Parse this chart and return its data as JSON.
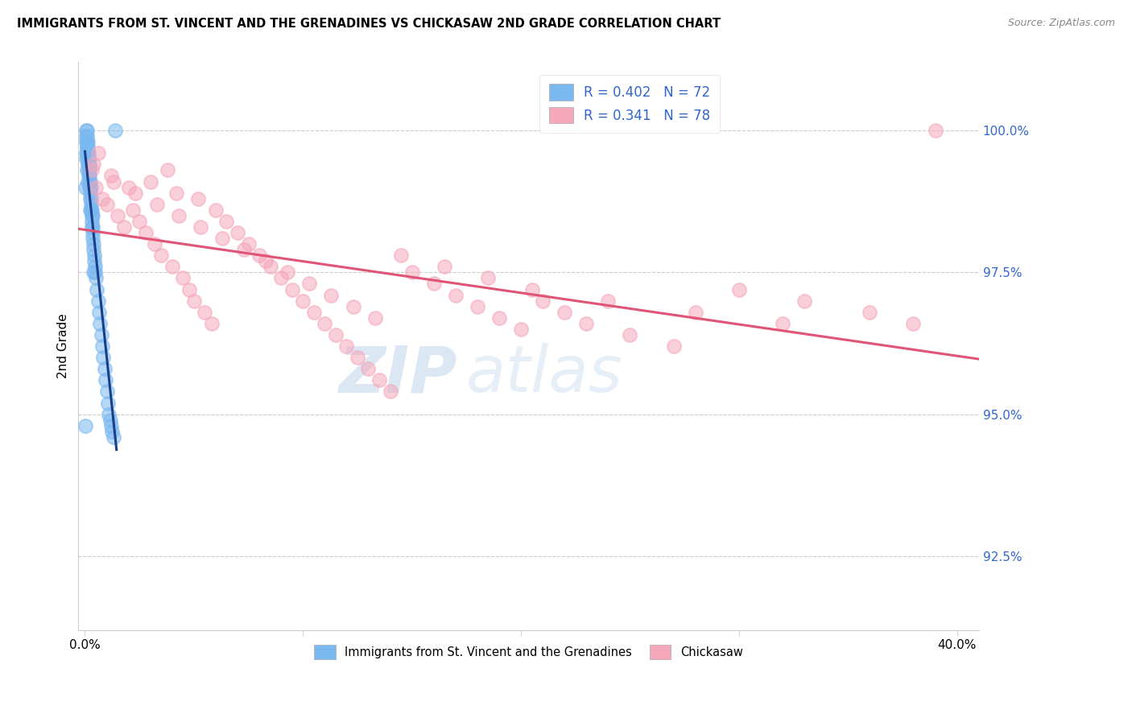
{
  "title": "IMMIGRANTS FROM ST. VINCENT AND THE GRENADINES VS CHICKASAW 2ND GRADE CORRELATION CHART",
  "source": "Source: ZipAtlas.com",
  "ylabel": "2nd Grade",
  "yticks": [
    92.5,
    95.0,
    97.5,
    100.0
  ],
  "ytick_labels": [
    "92.5%",
    "95.0%",
    "97.5%",
    "100.0%"
  ],
  "ymin": 91.2,
  "ymax": 101.2,
  "xmin": -0.3,
  "xmax": 41.0,
  "blue_R": 0.402,
  "blue_N": 72,
  "pink_R": 0.341,
  "pink_N": 78,
  "blue_color": "#7ab8f0",
  "pink_color": "#f5a8bc",
  "blue_line_color": "#1a3f8a",
  "pink_line_color": "#e05575",
  "legend_label_blue": "Immigrants from St. Vincent and the Grenadines",
  "legend_label_pink": "Chickasaw",
  "watermark_zip": "ZIP",
  "watermark_atlas": "atlas",
  "blue_scatter_x": [
    0.02,
    0.04,
    0.05,
    0.06,
    0.07,
    0.08,
    0.08,
    0.09,
    0.1,
    0.1,
    0.11,
    0.12,
    0.12,
    0.13,
    0.13,
    0.14,
    0.15,
    0.15,
    0.16,
    0.17,
    0.18,
    0.18,
    0.19,
    0.2,
    0.2,
    0.21,
    0.22,
    0.23,
    0.24,
    0.25,
    0.26,
    0.27,
    0.28,
    0.29,
    0.3,
    0.31,
    0.32,
    0.33,
    0.34,
    0.35,
    0.36,
    0.37,
    0.38,
    0.4,
    0.42,
    0.44,
    0.46,
    0.48,
    0.5,
    0.55,
    0.6,
    0.65,
    0.7,
    0.75,
    0.8,
    0.85,
    0.9,
    0.95,
    1.0,
    1.05,
    1.1,
    1.15,
    1.2,
    1.25,
    1.3,
    0.03,
    0.09,
    0.14,
    0.25,
    0.4,
    0.05,
    1.4
  ],
  "blue_scatter_y": [
    94.8,
    99.5,
    99.8,
    99.9,
    100.0,
    100.0,
    99.7,
    99.8,
    99.9,
    99.6,
    99.7,
    99.5,
    99.8,
    99.6,
    99.4,
    99.7,
    99.5,
    99.3,
    99.6,
    99.4,
    99.2,
    99.5,
    99.3,
    99.1,
    99.4,
    99.2,
    99.0,
    98.9,
    99.1,
    98.8,
    99.0,
    98.7,
    98.6,
    98.8,
    98.5,
    98.6,
    98.4,
    98.3,
    98.5,
    98.2,
    98.3,
    98.1,
    98.0,
    97.9,
    97.8,
    97.7,
    97.6,
    97.5,
    97.4,
    97.2,
    97.0,
    96.8,
    96.6,
    96.4,
    96.2,
    96.0,
    95.8,
    95.6,
    95.4,
    95.2,
    95.0,
    94.9,
    94.8,
    94.7,
    94.6,
    99.0,
    99.3,
    99.1,
    98.6,
    97.5,
    99.6,
    100.0
  ],
  "pink_scatter_x": [
    0.3,
    0.5,
    0.8,
    1.0,
    1.2,
    1.5,
    1.8,
    2.0,
    2.2,
    2.5,
    2.8,
    3.0,
    3.2,
    3.5,
    3.8,
    4.0,
    4.2,
    4.5,
    4.8,
    5.0,
    5.2,
    5.5,
    5.8,
    6.0,
    6.5,
    7.0,
    7.5,
    8.0,
    8.5,
    9.0,
    9.5,
    10.0,
    10.5,
    11.0,
    11.5,
    12.0,
    12.5,
    13.0,
    13.5,
    14.0,
    15.0,
    16.0,
    17.0,
    18.0,
    19.0,
    20.0,
    21.0,
    22.0,
    23.0,
    25.0,
    27.0,
    30.0,
    33.0,
    36.0,
    38.0,
    0.4,
    0.6,
    1.3,
    2.3,
    3.3,
    4.3,
    5.3,
    6.3,
    7.3,
    8.3,
    9.3,
    10.3,
    11.3,
    12.3,
    13.3,
    14.5,
    16.5,
    18.5,
    20.5,
    24.0,
    28.0,
    32.0,
    39.0
  ],
  "pink_scatter_y": [
    99.3,
    99.0,
    98.8,
    98.7,
    99.2,
    98.5,
    98.3,
    99.0,
    98.6,
    98.4,
    98.2,
    99.1,
    98.0,
    97.8,
    99.3,
    97.6,
    98.9,
    97.4,
    97.2,
    97.0,
    98.8,
    96.8,
    96.6,
    98.6,
    98.4,
    98.2,
    98.0,
    97.8,
    97.6,
    97.4,
    97.2,
    97.0,
    96.8,
    96.6,
    96.4,
    96.2,
    96.0,
    95.8,
    95.6,
    95.4,
    97.5,
    97.3,
    97.1,
    96.9,
    96.7,
    96.5,
    97.0,
    96.8,
    96.6,
    96.4,
    96.2,
    97.2,
    97.0,
    96.8,
    96.6,
    99.4,
    99.6,
    99.1,
    98.9,
    98.7,
    98.5,
    98.3,
    98.1,
    97.9,
    97.7,
    97.5,
    97.3,
    97.1,
    96.9,
    96.7,
    97.8,
    97.6,
    97.4,
    97.2,
    97.0,
    96.8,
    96.6,
    100.0
  ]
}
